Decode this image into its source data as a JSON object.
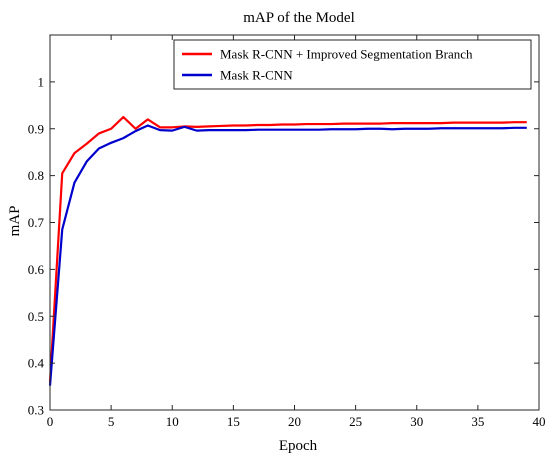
{
  "chart_data": {
    "type": "line",
    "title": "mAP of the Model",
    "xlabel": "Epoch",
    "ylabel": "mAP",
    "xlim": [
      0,
      40
    ],
    "ylim": [
      0.3,
      1.1
    ],
    "xticks": [
      0,
      5,
      10,
      15,
      20,
      25,
      30,
      35,
      40
    ],
    "yticks": [
      0.3,
      0.4,
      0.5,
      0.6,
      0.7,
      0.8,
      0.9,
      1
    ],
    "grid": false,
    "legend_position": "top-right",
    "x": [
      0,
      1,
      2,
      3,
      4,
      5,
      6,
      7,
      8,
      9,
      10,
      11,
      12,
      13,
      14,
      15,
      16,
      17,
      18,
      19,
      20,
      21,
      22,
      23,
      24,
      25,
      26,
      27,
      28,
      29,
      30,
      31,
      32,
      33,
      34,
      35,
      36,
      37,
      38,
      39
    ],
    "series": [
      {
        "name": "Mask R-CNN + Improved Segmentation Branch",
        "color": "#ff0000",
        "values": [
          0.36,
          0.805,
          0.848,
          0.868,
          0.89,
          0.9,
          0.925,
          0.9,
          0.92,
          0.903,
          0.903,
          0.905,
          0.904,
          0.905,
          0.906,
          0.907,
          0.907,
          0.908,
          0.908,
          0.909,
          0.909,
          0.91,
          0.91,
          0.91,
          0.911,
          0.911,
          0.911,
          0.911,
          0.912,
          0.912,
          0.912,
          0.912,
          0.912,
          0.913,
          0.913,
          0.913,
          0.913,
          0.913,
          0.914,
          0.914
        ]
      },
      {
        "name": "Mask R-CNN",
        "color": "#0000cc",
        "values": [
          0.352,
          0.685,
          0.785,
          0.83,
          0.858,
          0.87,
          0.88,
          0.895,
          0.907,
          0.897,
          0.896,
          0.904,
          0.896,
          0.897,
          0.897,
          0.897,
          0.897,
          0.898,
          0.898,
          0.898,
          0.898,
          0.898,
          0.898,
          0.899,
          0.899,
          0.899,
          0.9,
          0.9,
          0.899,
          0.9,
          0.9,
          0.9,
          0.901,
          0.901,
          0.901,
          0.901,
          0.901,
          0.901,
          0.902,
          0.902
        ]
      }
    ]
  }
}
